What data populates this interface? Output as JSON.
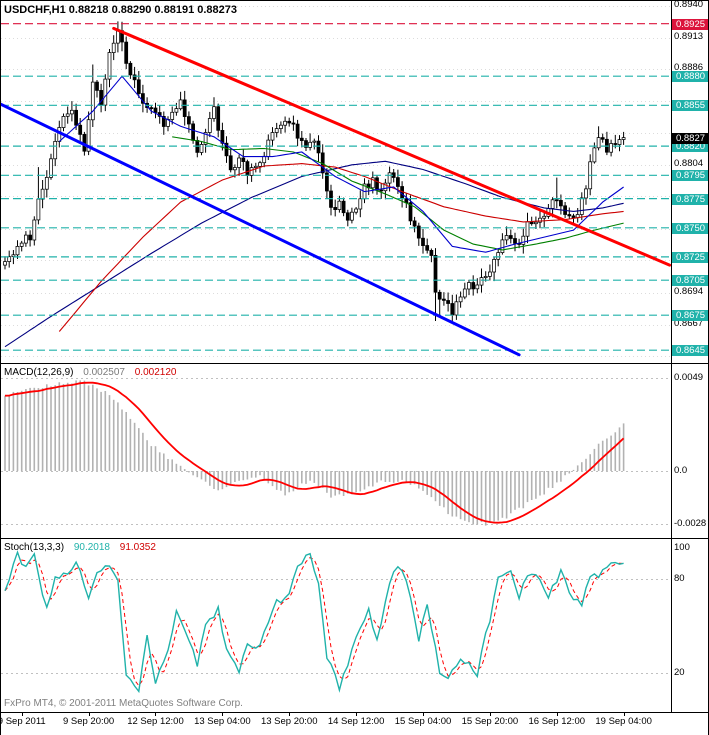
{
  "header": {
    "title_line": "USDCHF,H1 0.88218 0.88290 0.88191 0.88273"
  },
  "indicators": {
    "macd": {
      "name": "MACD(12,26,9)",
      "value_main": "0.002507",
      "value_signal": "0.002120"
    },
    "stoch": {
      "name": "Stoch(13,3,3)",
      "value_main": "90.2018",
      "value_signal": "91.0352"
    }
  },
  "footer": {
    "copyright": "FxPro MT4, © 2001-2011 MetaQuotes Software Corp."
  },
  "colors": {
    "background": "#ffffff",
    "frame": "#000000",
    "grid": "#dcdcdc",
    "candle_bull": "#ffffff",
    "candle_bear": "#000000",
    "candle_outline": "#000000",
    "trendline_red": "#ff0000",
    "trendline_blue": "#0000ff",
    "level_teal": "#20b2aa",
    "level_red": "#dc143c",
    "current_price_box": "#000000",
    "indicator_level": "#c0c0c0",
    "macd_histogram": "#b2b2b2",
    "macd_signal": "#ff0000",
    "stoch_main": "#20b2aa",
    "stoch_signal": "#ff0000"
  },
  "time_axis": {
    "labels": [
      {
        "text": "9 Sep 2011",
        "bar": 4
      },
      {
        "text": "9 Sep 20:00",
        "bar": 20
      },
      {
        "text": "12 Sep 12:00",
        "bar": 36
      },
      {
        "text": "13 Sep 04:00",
        "bar": 52
      },
      {
        "text": "13 Sep 20:00",
        "bar": 68
      },
      {
        "text": "14 Sep 12:00",
        "bar": 84
      },
      {
        "text": "15 Sep 04:00",
        "bar": 100
      },
      {
        "text": "15 Sep 20:00",
        "bar": 116
      },
      {
        "text": "16 Sep 12:00",
        "bar": 132
      },
      {
        "text": "19 Sep 04:00",
        "bar": 148
      }
    ]
  },
  "chart_data": [
    {
      "type": "candlestick",
      "symbol": "USDCHF",
      "timeframe": "H1",
      "ohlc": {
        "open": "0.88218",
        "high": "0.88290",
        "low": "0.88191",
        "close": "0.88273"
      },
      "current_price": 0.88273,
      "bars": 149,
      "price_range": {
        "top": 0.89445,
        "bottom": 0.8634
      },
      "grid_lines": [
        0.894,
        0.8913,
        0.8886,
        0.8859,
        0.8831,
        0.8804,
        0.8777,
        0.8749,
        0.8722,
        0.8694,
        0.8667,
        0.864
      ],
      "axis_ticks": [
        0.894,
        0.8913,
        0.8886,
        0.8804,
        0.8694,
        0.8667
      ],
      "levels": {
        "teal": [
          0.888,
          0.8855,
          0.882,
          0.8795,
          0.8775,
          0.875,
          0.8725,
          0.8705,
          0.8675,
          0.8645
        ],
        "red": [
          0.8925
        ]
      },
      "trendlines": [
        {
          "color": "#ff0000",
          "width": 3,
          "from": [
            26,
            0.8921
          ],
          "to": [
            159,
            0.8718
          ]
        },
        {
          "color": "#0000ff",
          "width": 3,
          "from": [
            -1,
            0.8856
          ],
          "to": [
            123,
            0.8641
          ]
        }
      ],
      "close_path": [
        [
          0,
          0.8722
        ],
        [
          2,
          0.873
        ],
        [
          4,
          0.8738
        ],
        [
          6,
          0.8742
        ],
        [
          8,
          0.8776
        ],
        [
          10,
          0.879
        ],
        [
          12,
          0.8822
        ],
        [
          14,
          0.8843
        ],
        [
          16,
          0.8849
        ],
        [
          18,
          0.8834
        ],
        [
          19,
          0.8815
        ],
        [
          21,
          0.8878
        ],
        [
          23,
          0.8858
        ],
        [
          25,
          0.8898
        ],
        [
          27,
          0.892
        ],
        [
          29,
          0.8893
        ],
        [
          31,
          0.8873
        ],
        [
          33,
          0.8858
        ],
        [
          36,
          0.8849
        ],
        [
          38,
          0.8836
        ],
        [
          40,
          0.8847
        ],
        [
          42,
          0.8856
        ],
        [
          44,
          0.8838
        ],
        [
          46,
          0.8818
        ],
        [
          48,
          0.8831
        ],
        [
          50,
          0.8853
        ],
        [
          52,
          0.882
        ],
        [
          54,
          0.8798
        ],
        [
          56,
          0.881
        ],
        [
          58,
          0.8797
        ],
        [
          60,
          0.8801
        ],
        [
          62,
          0.8814
        ],
        [
          64,
          0.883
        ],
        [
          66,
          0.8839
        ],
        [
          68,
          0.8843
        ],
        [
          70,
          0.883
        ],
        [
          72,
          0.8819
        ],
        [
          74,
          0.8825
        ],
        [
          76,
          0.8798
        ],
        [
          78,
          0.8764
        ],
        [
          80,
          0.8774
        ],
        [
          82,
          0.8758
        ],
        [
          84,
          0.877
        ],
        [
          86,
          0.8784
        ],
        [
          88,
          0.8791
        ],
        [
          90,
          0.878
        ],
        [
          92,
          0.8795
        ],
        [
          94,
          0.8784
        ],
        [
          96,
          0.8768
        ],
        [
          98,
          0.8751
        ],
        [
          100,
          0.8738
        ],
        [
          102,
          0.8728
        ],
        [
          103,
          0.8692
        ],
        [
          105,
          0.8688
        ],
        [
          107,
          0.8678
        ],
        [
          109,
          0.869
        ],
        [
          111,
          0.8703
        ],
        [
          113,
          0.8698
        ],
        [
          115,
          0.871
        ],
        [
          117,
          0.8722
        ],
        [
          119,
          0.8737
        ],
        [
          121,
          0.8742
        ],
        [
          123,
          0.8735
        ],
        [
          125,
          0.8753
        ],
        [
          127,
          0.8758
        ],
        [
          129,
          0.8763
        ],
        [
          131,
          0.8776
        ],
        [
          133,
          0.877
        ],
        [
          135,
          0.8759
        ],
        [
          137,
          0.8762
        ],
        [
          139,
          0.8785
        ],
        [
          140,
          0.8803
        ],
        [
          141,
          0.8819
        ],
        [
          142,
          0.8828
        ],
        [
          144,
          0.8816
        ],
        [
          146,
          0.8822
        ],
        [
          148,
          0.88273
        ]
      ],
      "wick_overrides": [
        {
          "bar": 8,
          "high": 0.8802
        },
        {
          "bar": 21,
          "high": 0.889
        },
        {
          "bar": 27,
          "high": 0.8927
        },
        {
          "bar": 50,
          "high": 0.8862
        },
        {
          "bar": 103,
          "low": 0.867
        },
        {
          "bar": 104,
          "low": 0.8674
        },
        {
          "bar": 108,
          "low": 0.8671
        },
        {
          "bar": 132,
          "high": 0.8793
        },
        {
          "bar": 142,
          "high": 0.8837
        }
      ],
      "moving_averages": [
        {
          "name": "ma-slow-navy",
          "color": "#000080",
          "points": [
            [
              0,
              0.8648
            ],
            [
              11,
              0.8674
            ],
            [
              23,
              0.8701
            ],
            [
              35,
              0.8728
            ],
            [
              47,
              0.8754
            ],
            [
              59,
              0.8776
            ],
            [
              71,
              0.8794
            ],
            [
              83,
              0.8804
            ],
            [
              91,
              0.8807
            ],
            [
              100,
              0.88
            ],
            [
              110,
              0.8788
            ],
            [
              119,
              0.8776
            ],
            [
              129,
              0.8767
            ],
            [
              136,
              0.8764
            ],
            [
              143,
              0.8767
            ],
            [
              148,
              0.8771
            ]
          ]
        },
        {
          "name": "ma-medium-red",
          "color": "#cc0000",
          "points": [
            [
              13,
              0.8661
            ],
            [
              23,
              0.8704
            ],
            [
              33,
              0.8742
            ],
            [
              42,
              0.8772
            ],
            [
              52,
              0.8791
            ],
            [
              62,
              0.8803
            ],
            [
              71,
              0.8805
            ],
            [
              79,
              0.8802
            ],
            [
              86,
              0.8794
            ],
            [
              95,
              0.8781
            ],
            [
              105,
              0.8768
            ],
            [
              115,
              0.876
            ],
            [
              124,
              0.8755
            ],
            [
              134,
              0.8757
            ],
            [
              143,
              0.8762
            ],
            [
              148,
              0.8764
            ]
          ]
        },
        {
          "name": "ma-fast-green",
          "color": "#008000",
          "points": [
            [
              40,
              0.8828
            ],
            [
              47,
              0.8824
            ],
            [
              54,
              0.8817
            ],
            [
              62,
              0.8818
            ],
            [
              69,
              0.8815
            ],
            [
              76,
              0.8805
            ],
            [
              83,
              0.879
            ],
            [
              91,
              0.8779
            ],
            [
              98,
              0.8768
            ],
            [
              105,
              0.8748
            ],
            [
              112,
              0.8736
            ],
            [
              119,
              0.8731
            ],
            [
              127,
              0.8736
            ],
            [
              134,
              0.8741
            ],
            [
              141,
              0.8748
            ],
            [
              148,
              0.8754
            ]
          ]
        },
        {
          "name": "ma-fast-blue",
          "color": "#0000cd",
          "points": [
            [
              13,
              0.8824
            ],
            [
              21,
              0.885
            ],
            [
              28,
              0.888
            ],
            [
              35,
              0.885
            ],
            [
              42,
              0.8837
            ],
            [
              50,
              0.8828
            ],
            [
              57,
              0.8811
            ],
            [
              64,
              0.8811
            ],
            [
              71,
              0.8815
            ],
            [
              79,
              0.8794
            ],
            [
              86,
              0.8781
            ],
            [
              93,
              0.8785
            ],
            [
              100,
              0.8764
            ],
            [
              107,
              0.8734
            ],
            [
              115,
              0.8729
            ],
            [
              122,
              0.8736
            ],
            [
              129,
              0.8742
            ],
            [
              136,
              0.8748
            ],
            [
              143,
              0.8772
            ],
            [
              148,
              0.8785
            ]
          ]
        }
      ]
    },
    {
      "type": "macd",
      "label": "MACD(12,26,9)",
      "current_main": 0.002507,
      "current_signal": 0.00212,
      "signal_period": 9,
      "scale": {
        "top": 0.0049,
        "zero": 0.0,
        "bottom": -0.0028
      },
      "axis_labels": [
        {
          "text": "0.0049",
          "value": 0.0049
        },
        {
          "text": "0.0",
          "value": 0.0
        },
        {
          "text": "-0.0028",
          "value": -0.0028
        }
      ],
      "anchors": [
        [
          0,
          0.004
        ],
        [
          6,
          0.0043
        ],
        [
          13,
          0.0046
        ],
        [
          19,
          0.0047
        ],
        [
          25,
          0.004
        ],
        [
          30,
          0.0028
        ],
        [
          35,
          0.0014
        ],
        [
          40,
          0.0005
        ],
        [
          46,
          -0.0003
        ],
        [
          51,
          -0.001
        ],
        [
          57,
          -0.0004
        ],
        [
          61,
          -0.0003
        ],
        [
          67,
          -0.0012
        ],
        [
          73,
          -0.0005
        ],
        [
          78,
          -0.0013
        ],
        [
          84,
          -0.0012
        ],
        [
          90,
          -0.0006
        ],
        [
          96,
          -0.0005
        ],
        [
          101,
          -0.0012
        ],
        [
          106,
          -0.0022
        ],
        [
          111,
          -0.0028
        ],
        [
          115,
          -0.0028
        ],
        [
          120,
          -0.0024
        ],
        [
          126,
          -0.0016
        ],
        [
          133,
          -0.0005
        ],
        [
          138,
          0.0005
        ],
        [
          143,
          0.0016
        ],
        [
          148,
          0.0025
        ]
      ]
    },
    {
      "type": "stochastic",
      "label": "Stoch(13,3,3)",
      "current_main": 90.2018,
      "current_signal": 91.0352,
      "signal_period": 3,
      "levels": [
        80,
        20
      ],
      "axis_labels": [
        {
          "text": "100",
          "value": 100
        },
        {
          "text": "80",
          "value": 80
        },
        {
          "text": "20",
          "value": 20
        }
      ],
      "anchors": [
        [
          0,
          75
        ],
        [
          3,
          95
        ],
        [
          5,
          88
        ],
        [
          7,
          95
        ],
        [
          10,
          60
        ],
        [
          12,
          80
        ],
        [
          15,
          85
        ],
        [
          17,
          90
        ],
        [
          20,
          70
        ],
        [
          22,
          85
        ],
        [
          24,
          90
        ],
        [
          27,
          80
        ],
        [
          29,
          20
        ],
        [
          32,
          10
        ],
        [
          34,
          45
        ],
        [
          36,
          15
        ],
        [
          39,
          35
        ],
        [
          41,
          60
        ],
        [
          44,
          40
        ],
        [
          46,
          25
        ],
        [
          48,
          50
        ],
        [
          51,
          60
        ],
        [
          53,
          35
        ],
        [
          56,
          20
        ],
        [
          58,
          40
        ],
        [
          60,
          35
        ],
        [
          63,
          50
        ],
        [
          65,
          65
        ],
        [
          68,
          70
        ],
        [
          70,
          90
        ],
        [
          73,
          95
        ],
        [
          75,
          75
        ],
        [
          77,
          30
        ],
        [
          80,
          10
        ],
        [
          82,
          25
        ],
        [
          85,
          50
        ],
        [
          87,
          60
        ],
        [
          89,
          40
        ],
        [
          92,
          75
        ],
        [
          94,
          90
        ],
        [
          97,
          70
        ],
        [
          99,
          40
        ],
        [
          101,
          65
        ],
        [
          104,
          20
        ],
        [
          106,
          15
        ],
        [
          109,
          30
        ],
        [
          111,
          25
        ],
        [
          113,
          20
        ],
        [
          116,
          55
        ],
        [
          118,
          80
        ],
        [
          121,
          85
        ],
        [
          123,
          70
        ],
        [
          126,
          85
        ],
        [
          128,
          80
        ],
        [
          130,
          70
        ],
        [
          133,
          85
        ],
        [
          135,
          70
        ],
        [
          138,
          65
        ],
        [
          140,
          80
        ],
        [
          143,
          85
        ],
        [
          145,
          88
        ],
        [
          148,
          90.2
        ]
      ]
    }
  ]
}
